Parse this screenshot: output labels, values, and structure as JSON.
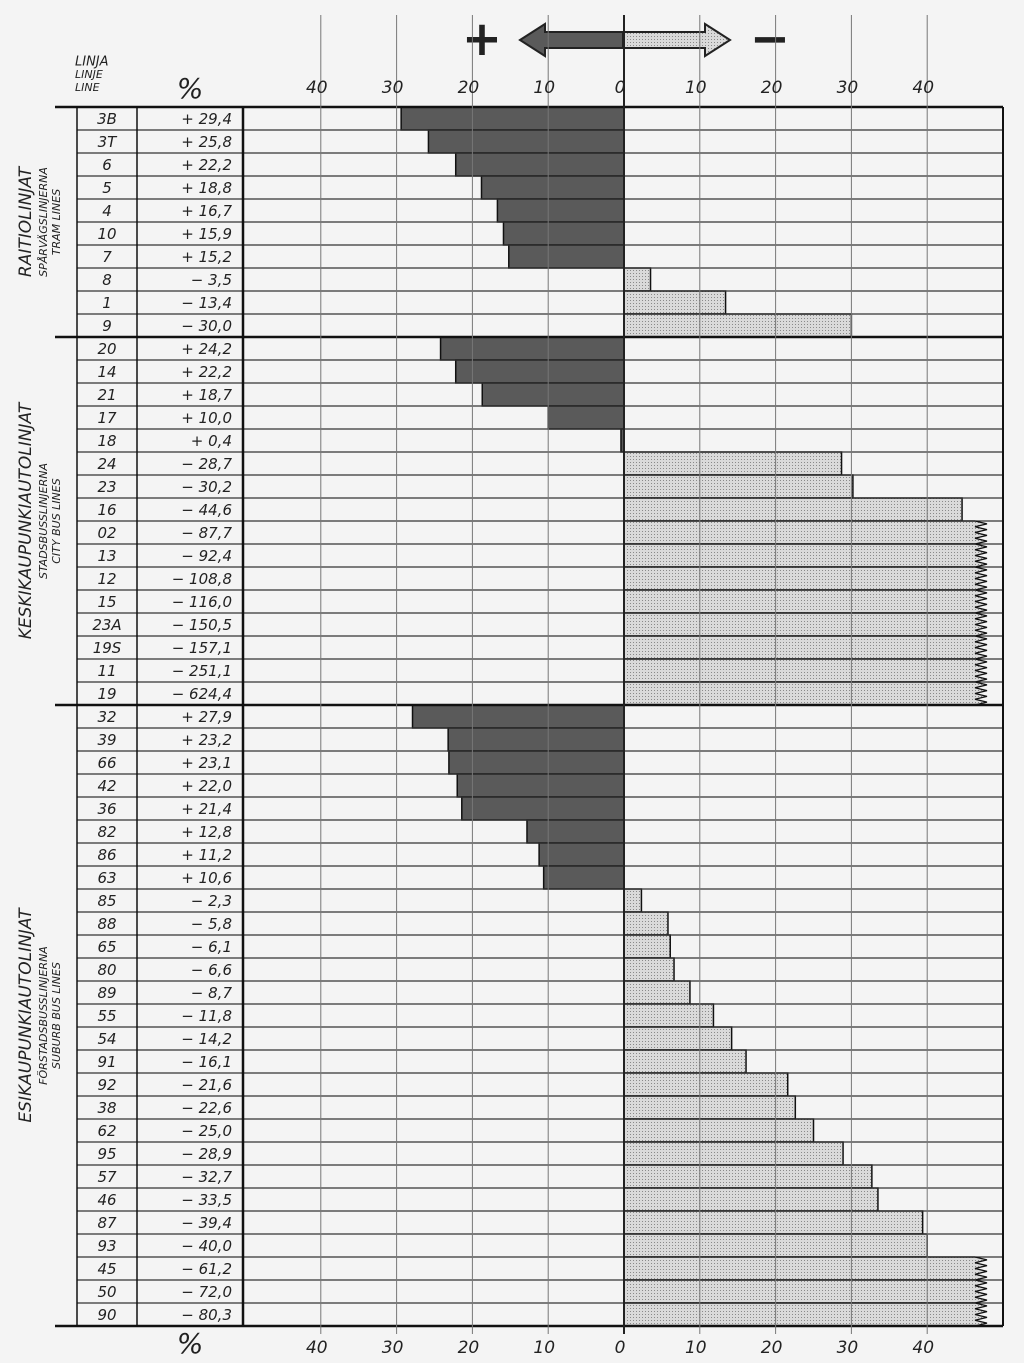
{
  "chart_data": {
    "type": "bar",
    "header": {
      "line_labels": [
        "LINJA",
        "LINJE",
        "LINE"
      ],
      "percent": "%",
      "plus": "+",
      "minus": "−"
    },
    "xlim": [
      50,
      -50
    ],
    "xticks": [
      40,
      30,
      20,
      10,
      0,
      {
        "value": -10,
        "label": "10"
      },
      {
        "value": -20,
        "label": "20"
      },
      {
        "value": -30,
        "label": "30"
      },
      {
        "value": -40,
        "label": "40"
      }
    ],
    "colors": {
      "positive": "#5a5a5a",
      "negative": "#cfcfcf"
    },
    "grid": true,
    "groups": [
      {
        "label": [
          "RAITIOLINJAT",
          "SPÅRVÄGSLINJERNA",
          "TRAM LINES"
        ],
        "categories": [
          "3B",
          "3T",
          "6",
          "5",
          "4",
          "10",
          "7",
          "8",
          "1",
          "9"
        ],
        "values": [
          29.4,
          25.8,
          22.2,
          18.8,
          16.7,
          15.9,
          15.2,
          -3.5,
          -13.4,
          -30.0
        ],
        "value_labels": [
          "+ 29,4",
          "+ 25,8",
          "+ 22,2",
          "+ 18,8",
          "+ 16,7",
          "+ 15,9",
          "+ 15,2",
          "− 3,5",
          "− 13,4",
          "− 30,0"
        ]
      },
      {
        "label": [
          "KESKIKAUPUNKIAUTOLINJAT",
          "STADSBUSSLINJERNA",
          "CITY BUS LINES"
        ],
        "categories": [
          "20",
          "14",
          "21",
          "17",
          "18",
          "24",
          "23",
          "16",
          "02",
          "13",
          "12",
          "15",
          "23A",
          "19S",
          "11",
          "19"
        ],
        "values": [
          24.2,
          22.2,
          18.7,
          10.0,
          0.4,
          -28.7,
          -30.2,
          -44.6,
          -87.7,
          -92.4,
          -108.8,
          -116.0,
          -150.5,
          -157.1,
          -251.1,
          -624.4
        ],
        "value_labels": [
          "+ 24,2",
          "+ 22,2",
          "+ 18,7",
          "+ 10,0",
          "+ 0,4",
          "− 28,7",
          "− 30,2",
          "− 44,6",
          "− 87,7",
          "− 92,4",
          "− 108,8",
          "− 116,0",
          "− 150,5",
          "− 157,1",
          "− 251,1",
          "− 624,4"
        ]
      },
      {
        "label": [
          "ESIKAUPUNKIAUTOLINJAT",
          "FÖRSTADSBUSSLINJERNA",
          "SUBURB BUS LINES"
        ],
        "categories": [
          "32",
          "39",
          "66",
          "42",
          "36",
          "82",
          "86",
          "63",
          "85",
          "88",
          "65",
          "80",
          "89",
          "55",
          "54",
          "91",
          "92",
          "38",
          "62",
          "95",
          "57",
          "46",
          "87",
          "93",
          "45",
          "50",
          "90"
        ],
        "values": [
          27.9,
          23.2,
          23.1,
          22.0,
          21.4,
          12.8,
          11.2,
          10.6,
          -2.3,
          -5.8,
          -6.1,
          -6.6,
          -8.7,
          -11.8,
          -14.2,
          -16.1,
          -21.6,
          -22.6,
          -25.0,
          -28.9,
          -32.7,
          -33.5,
          -39.4,
          -40.0,
          -61.2,
          -72.0,
          -80.3
        ],
        "value_labels": [
          "+ 27,9",
          "+ 23,2",
          "+ 23,1",
          "+ 22,0",
          "+ 21,4",
          "+ 12,8",
          "+ 11,2",
          "+ 10,6",
          "− 2,3",
          "− 5,8",
          "− 6,1",
          "− 6,6",
          "− 8,7",
          "− 11,8",
          "− 14,2",
          "− 16,1",
          "− 21,6",
          "− 22,6",
          "− 25,0",
          "− 28,9",
          "− 32,7",
          "− 33,5",
          "− 39,4",
          "− 40,0",
          "− 61,2",
          "− 72,0",
          "− 80,3"
        ]
      }
    ]
  }
}
